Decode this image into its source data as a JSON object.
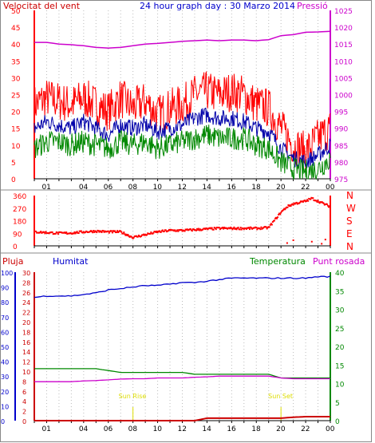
{
  "colors": {
    "wind": "#ff0000",
    "dir": "#ff0000",
    "pressure": "#cc00cc",
    "humidity": "#0000cc",
    "temperature": "#008800",
    "dewpoint": "#cc00cc",
    "rain": "#cc0000",
    "blue": "#0000cc",
    "green": "#008800",
    "gust": "#ff0000",
    "avg": "#0000aa",
    "sun": "#dddd00",
    "grid": "#bbbbbb"
  },
  "header": {
    "wind_label": "Velocitat del vent",
    "title": "24 hour graph day : 30 Marzo 2014",
    "pressure_label": "Pressió"
  },
  "lower_header": {
    "rain_label": "Pluja",
    "humidity_label": "Humitat",
    "temperature_label": "Temperatura",
    "dewpoint_label": "Punt rosada"
  },
  "x_ticks": [
    "01",
    "04",
    "06",
    "08",
    "10",
    "12",
    "14",
    "16",
    "18",
    "20",
    "22",
    "00"
  ],
  "annotations": {
    "sunrise": "Sun Rise",
    "sunset": "Sun Set"
  },
  "chart_data": [
    {
      "type": "line",
      "title": "24 hour graph day : 30 Marzo 2014",
      "left_axis": {
        "label": "Velocitat del vent",
        "ticks": [
          0,
          5,
          10,
          15,
          20,
          25,
          30,
          35,
          40,
          45,
          50
        ],
        "range": [
          0,
          50
        ]
      },
      "right_axis": {
        "label": "Pressió",
        "ticks": [
          975,
          980,
          985,
          990,
          995,
          1000,
          1005,
          1010,
          1015,
          1020,
          1025
        ],
        "range": [
          975,
          1025
        ]
      },
      "x_hours": [
        0,
        1,
        2,
        3,
        4,
        5,
        6,
        7,
        8,
        9,
        10,
        11,
        12,
        13,
        14,
        15,
        16,
        17,
        18,
        19,
        20,
        21,
        22,
        23,
        24
      ],
      "series": [
        {
          "name": "Pressió",
          "axis": "right",
          "values": [
            1015.5,
            1015.5,
            1015.0,
            1014.8,
            1014.5,
            1014.0,
            1013.8,
            1014.0,
            1014.5,
            1015.0,
            1015.2,
            1015.5,
            1015.8,
            1016.0,
            1016.2,
            1016.0,
            1016.2,
            1016.2,
            1016.0,
            1016.3,
            1017.5,
            1017.8,
            1018.5,
            1018.6,
            1018.8
          ]
        },
        {
          "color_key": "gust",
          "axis": "left",
          "values": [
            22,
            24,
            23,
            22,
            24,
            22,
            20,
            24,
            21,
            23,
            19,
            21,
            22,
            25,
            26,
            25,
            26,
            25,
            22,
            21,
            15,
            10,
            8,
            12,
            15
          ]
        },
        {
          "color_key": "avg",
          "axis": "left",
          "values": [
            15,
            17,
            16,
            15,
            17,
            15,
            13,
            16,
            15,
            16,
            14,
            15,
            16,
            18,
            19,
            18,
            18,
            17,
            15,
            14,
            9,
            6,
            5,
            7,
            10
          ]
        },
        {
          "color_key": "green",
          "axis": "left",
          "values": [
            9,
            11,
            11,
            10,
            11,
            10,
            9,
            11,
            10,
            11,
            9,
            10,
            11,
            12,
            13,
            12,
            12,
            12,
            10,
            9,
            5,
            3,
            2,
            3,
            6
          ]
        }
      ]
    },
    {
      "type": "scatter",
      "title": "",
      "y_ticks": [
        0,
        90,
        180,
        270,
        360
      ],
      "y_range": [
        0,
        360
      ],
      "compass_labels": [
        "N",
        "W",
        "S",
        "E",
        "N"
      ],
      "x_hours": [
        0,
        1,
        2,
        3,
        4,
        5,
        6,
        7,
        8,
        9,
        10,
        11,
        12,
        13,
        14,
        15,
        16,
        17,
        18,
        19,
        20,
        20.5,
        21,
        21.5,
        22,
        22.5,
        23,
        23.5,
        24
      ],
      "values": [
        100,
        95,
        90,
        92,
        100,
        105,
        100,
        100,
        60,
        80,
        100,
        110,
        110,
        115,
        120,
        125,
        125,
        125,
        125,
        130,
        240,
        280,
        300,
        310,
        320,
        340,
        320,
        300,
        280
      ]
    },
    {
      "type": "line",
      "title": "",
      "left_axis_rain": {
        "label": "Pluja",
        "ticks": [
          0,
          2,
          4,
          6,
          8,
          10,
          12,
          14,
          16,
          18,
          20,
          22,
          24,
          26,
          28,
          30
        ],
        "range": [
          0,
          30
        ]
      },
      "left_axis_humidity": {
        "label": "Humitat",
        "ticks": [
          0,
          10,
          20,
          30,
          40,
          50,
          60,
          70,
          80,
          90,
          100
        ],
        "range": [
          0,
          100
        ]
      },
      "right_axis": {
        "label": "Temperatura",
        "ticks": [
          0,
          5,
          10,
          15,
          20,
          25,
          30,
          35,
          40
        ],
        "range": [
          0,
          40
        ]
      },
      "x_hours": [
        0,
        1,
        2,
        3,
        4,
        5,
        6,
        7,
        8,
        9,
        10,
        11,
        12,
        13,
        14,
        15,
        16,
        17,
        18,
        19,
        20,
        21,
        22,
        23,
        24
      ],
      "series": [
        {
          "name": "Humitat",
          "axis": "humidity",
          "values": [
            83,
            84,
            84,
            84,
            85,
            86,
            88,
            89,
            90,
            91,
            91,
            92,
            93,
            93,
            94,
            95,
            96,
            96,
            96,
            96,
            96,
            96,
            96,
            97,
            97
          ]
        },
        {
          "name": "Temperatura",
          "axis": "right",
          "values": [
            14,
            14,
            14,
            14,
            14,
            14,
            13.5,
            13,
            13,
            13,
            13,
            13,
            13,
            12.5,
            12.5,
            12.5,
            12.5,
            12.5,
            12.5,
            12.5,
            11.5,
            11.5,
            11.5,
            11.5,
            11.5
          ]
        },
        {
          "name": "Punt rosada",
          "axis": "right",
          "values": [
            10.5,
            10.5,
            10.5,
            10.5,
            10.7,
            10.8,
            11,
            11.2,
            11.3,
            11.3,
            11.5,
            11.5,
            11.5,
            11.7,
            11.8,
            12,
            12,
            12,
            12,
            12,
            11.5,
            11.3,
            11.3,
            11.3,
            11.3
          ]
        },
        {
          "name": "Pluja",
          "axis": "rain",
          "values": [
            0,
            0,
            0,
            0,
            0,
            0,
            0,
            0,
            0,
            0,
            0,
            0,
            0,
            0,
            0.5,
            0.5,
            0.5,
            0.5,
            0.5,
            0.5,
            0.5,
            0.7,
            0.8,
            0.8,
            0.8
          ]
        }
      ],
      "sunrise_hour": 8,
      "sunset_hour": 20
    }
  ]
}
